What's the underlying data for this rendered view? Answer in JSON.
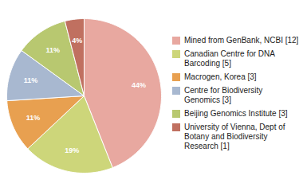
{
  "chart_data": {
    "type": "pie",
    "categories": [
      "Mined from GenBank, NCBI [12]",
      "Canadian Centre for DNA\nBarcoding [5]",
      "Macrogen, Korea [3]",
      "Centre for Biodiversity\nGenomics [3]",
      "Beijing Genomics Institute [3]",
      "University of Vienna, Dept of\nBotany and Biodiversity\nResearch [1]"
    ],
    "values": [
      44,
      19,
      11,
      11,
      11,
      4
    ],
    "value_labels": [
      "44%",
      "19%",
      "11%",
      "11%",
      "11%",
      "4%"
    ],
    "colors": [
      "#e8a8a0",
      "#cdd67a",
      "#e8a050",
      "#a8b8d0",
      "#b8c870",
      "#c07060"
    ],
    "data_labels": true,
    "legend": "right"
  }
}
